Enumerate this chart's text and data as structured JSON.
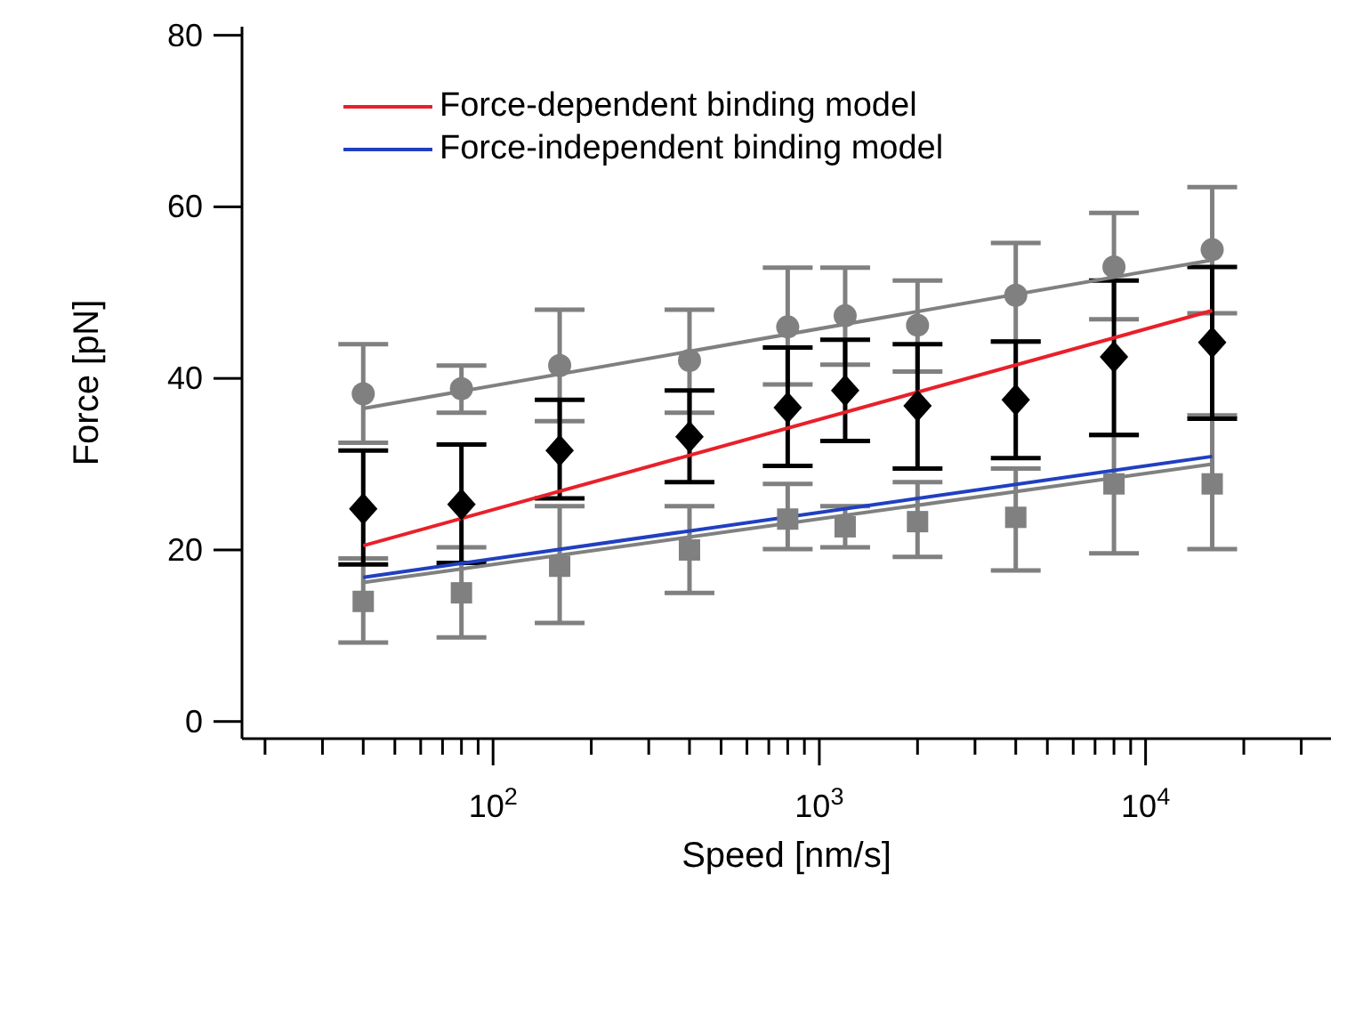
{
  "chart_data": {
    "type": "scatter",
    "xlabel": "Speed [nm/s]",
    "ylabel": "Force [pN]",
    "log": "x",
    "legend": "top left",
    "xlim": [
      17,
      37000
    ],
    "ylim": [
      -2,
      81
    ],
    "xticks": [
      {
        "value": 20,
        "label": null
      },
      {
        "value": 30,
        "label": null
      },
      {
        "value": 40,
        "label": null
      },
      {
        "value": 50,
        "label": null
      },
      {
        "value": 60,
        "label": null
      },
      {
        "value": 70,
        "label": null
      },
      {
        "value": 80,
        "label": null
      },
      {
        "value": 90,
        "label": null
      },
      {
        "value": 100,
        "label": "10$^{2}$"
      },
      {
        "value": 200,
        "label": null
      },
      {
        "value": 300,
        "label": null
      },
      {
        "value": 400,
        "label": null
      },
      {
        "value": 500,
        "label": null
      },
      {
        "value": 600,
        "label": null
      },
      {
        "value": 700,
        "label": null
      },
      {
        "value": 800,
        "label": null
      },
      {
        "value": 900,
        "label": null
      },
      {
        "value": 1000,
        "label": "10$^{3}$"
      },
      {
        "value": 2000,
        "label": null
      },
      {
        "value": 3000,
        "label": null
      },
      {
        "value": 4000,
        "label": null
      },
      {
        "value": 5000,
        "label": null
      },
      {
        "value": 6000,
        "label": null
      },
      {
        "value": 7000,
        "label": null
      },
      {
        "value": 8000,
        "label": null
      },
      {
        "value": 9000,
        "label": null
      },
      {
        "value": 10000,
        "label": "10$^{4}$"
      },
      {
        "value": 20000,
        "label": null
      },
      {
        "value": 30000,
        "label": null
      }
    ],
    "yticks": [
      0,
      20,
      40,
      60,
      80
    ],
    "series": [
      {
        "type": "line",
        "color": "#808080",
        "x": [
          40,
          16000
        ],
        "values": [
          36.5,
          53.8
        ]
      },
      {
        "type": "line",
        "color": "#808080",
        "x": [
          40,
          16000
        ],
        "values": [
          16.2,
          30
        ]
      },
      {
        "type": "line",
        "name": "Force-dependent binding model",
        "color": "#e8202a",
        "x": [
          40,
          16000
        ],
        "values": [
          20.5,
          47.9
        ]
      },
      {
        "type": "line",
        "name": "Force-independent binding model",
        "color": "#2040c0",
        "x": [
          40,
          16000
        ],
        "values": [
          16.8,
          30.9
        ]
      },
      {
        "type": "scatter",
        "marker": "circle",
        "color": "#808080",
        "x": [
          40,
          80,
          160,
          400,
          800,
          1200,
          2000,
          4000,
          8000,
          16000
        ],
        "values": [
          38.2,
          38.8,
          41.5,
          42.1,
          46,
          47.3,
          46.2,
          49.7,
          53,
          55
        ],
        "errors": [
          [
            32.5,
            44
          ],
          [
            36,
            41.5
          ],
          [
            35,
            48
          ],
          [
            36,
            48
          ],
          [
            39.3,
            52.9
          ],
          [
            41.6,
            52.9
          ],
          [
            40.8,
            51.4
          ],
          [
            44.3,
            55.8
          ],
          [
            46.9,
            59.3
          ],
          [
            47.6,
            62.3
          ]
        ]
      },
      {
        "type": "scatter",
        "marker": "square",
        "color": "#808080",
        "x": [
          40,
          80,
          160,
          400,
          800,
          1200,
          2000,
          4000,
          8000,
          16000
        ],
        "values": [
          14,
          15,
          18.1,
          20,
          23.6,
          22.7,
          23.3,
          23.8,
          27.7,
          27.7
        ],
        "errors": [
          [
            9.2,
            19
          ],
          [
            9.8,
            20.3
          ],
          [
            11.5,
            25.1
          ],
          [
            15,
            25.1
          ],
          [
            20.1,
            27.7
          ],
          [
            20.3,
            25.1
          ],
          [
            19.2,
            27.9
          ],
          [
            17.6,
            29.5
          ],
          [
            19.6,
            33.4
          ],
          [
            20.1,
            35.7
          ]
        ]
      },
      {
        "type": "scatter",
        "marker": "diamond",
        "color": "#000000",
        "x": [
          40,
          80,
          160,
          400,
          800,
          1200,
          2000,
          4000,
          8000,
          16000
        ],
        "values": [
          24.8,
          25.3,
          31.6,
          33.2,
          36.6,
          38.6,
          36.8,
          37.5,
          42.5,
          44.2
        ],
        "errors": [
          [
            18.3,
            31.6
          ],
          [
            18.5,
            32.3
          ],
          [
            26,
            37.5
          ],
          [
            27.9,
            38.6
          ],
          [
            29.8,
            43.6
          ],
          [
            32.7,
            44.5
          ],
          [
            29.5,
            44
          ],
          [
            30.7,
            44.3
          ],
          [
            33.4,
            51.4
          ],
          [
            35.3,
            53
          ]
        ]
      }
    ]
  }
}
